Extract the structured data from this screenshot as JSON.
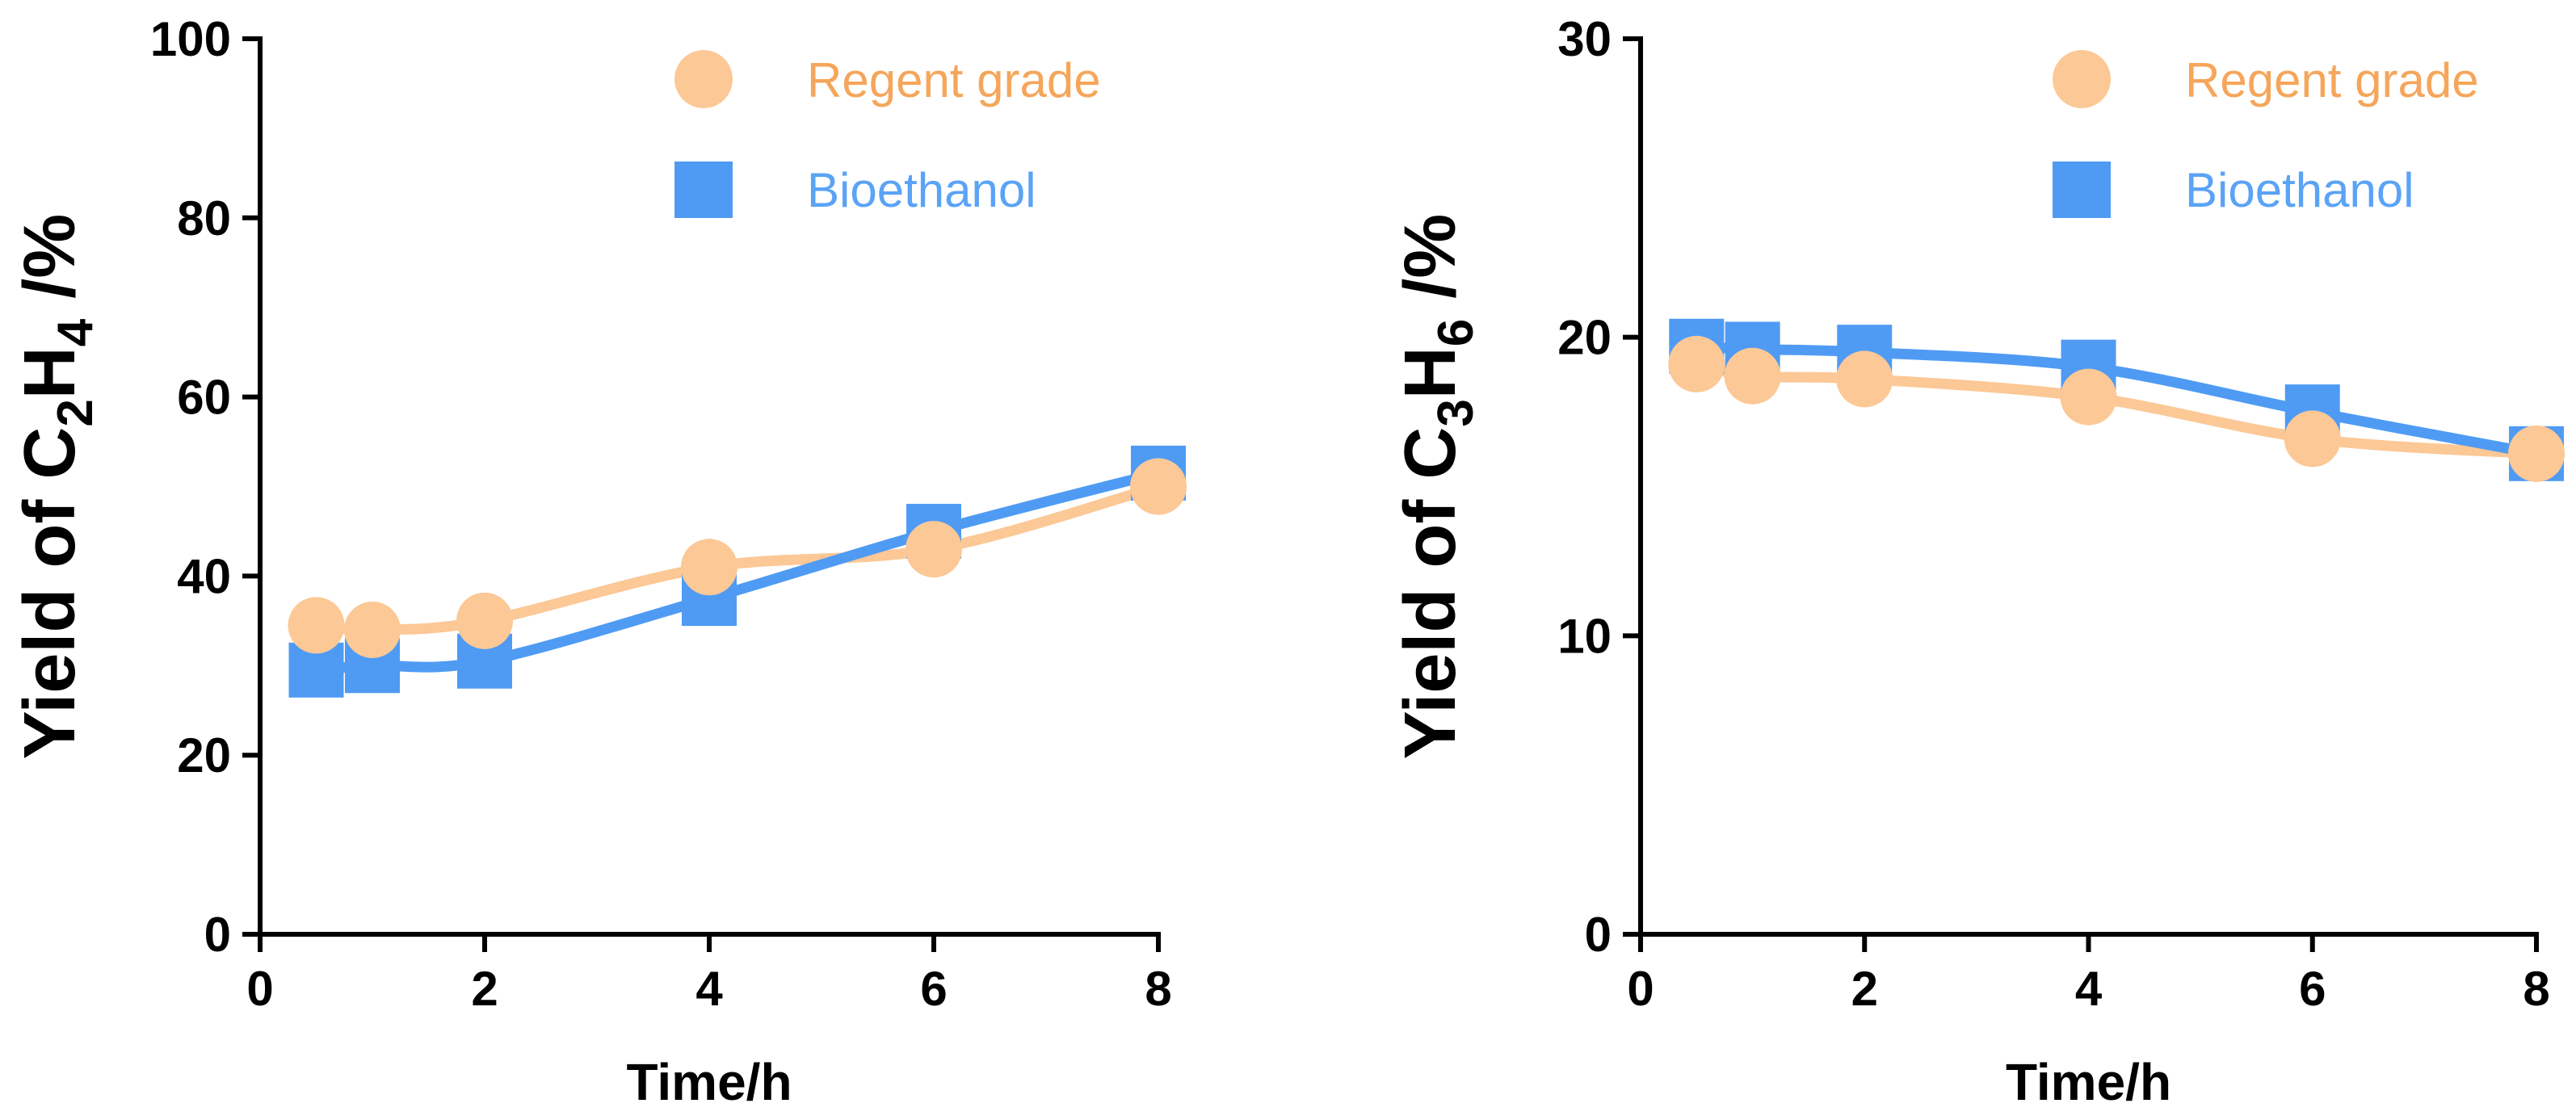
{
  "colors": {
    "regent": "#fbc896",
    "regent_text": "#f5a65b",
    "bio": "#4f9bf4",
    "bio_text": "#5aa3f6",
    "axis": "#000000"
  },
  "chart_data": [
    {
      "type": "line",
      "title": "",
      "xlabel": "Time/h",
      "ylabel": {
        "prefix": "Yield of C",
        "sub1": "2",
        "mid": "H",
        "sub2": "4",
        "suffix": " /%"
      },
      "xlim": [
        0,
        8
      ],
      "ylim": [
        0,
        100
      ],
      "xticks": [
        0,
        2,
        4,
        6,
        8
      ],
      "yticks": [
        0,
        20,
        40,
        60,
        80,
        100
      ],
      "xtick_labels": [
        "0",
        "2",
        "4",
        "6",
        "8"
      ],
      "ytick_labels": [
        "0",
        "20",
        "40",
        "60",
        "80",
        "100"
      ],
      "grid": false,
      "legend_position": "top-right",
      "series": [
        {
          "name": "Regent grade",
          "marker": "circle",
          "color_key": "regent",
          "x": [
            0.5,
            1,
            2,
            4,
            6,
            8
          ],
          "y": [
            34.5,
            34,
            35,
            41,
            43,
            50
          ]
        },
        {
          "name": "Bioethanol",
          "marker": "square",
          "color_key": "bio",
          "x": [
            0.5,
            1,
            2,
            4,
            6,
            8
          ],
          "y": [
            29.5,
            30,
            30.5,
            37.5,
            45,
            51.5
          ]
        }
      ]
    },
    {
      "type": "line",
      "title": "",
      "xlabel": "Time/h",
      "ylabel": {
        "prefix": "Yield of C",
        "sub1": "3",
        "mid": "H",
        "sub2": "6",
        "suffix": " /%"
      },
      "xlim": [
        0,
        8
      ],
      "ylim": [
        0,
        30
      ],
      "xticks": [
        0,
        2,
        4,
        6,
        8
      ],
      "yticks": [
        0,
        10,
        20,
        30
      ],
      "xtick_labels": [
        "0",
        "2",
        "4",
        "6",
        "8"
      ],
      "ytick_labels": [
        "0",
        "10",
        "20",
        "30"
      ],
      "grid": false,
      "legend_position": "top-right",
      "series": [
        {
          "name": "Regent grade",
          "marker": "circle",
          "color_key": "regent",
          "x": [
            0.5,
            1,
            2,
            4,
            6,
            8
          ],
          "y": [
            19.1,
            18.7,
            18.6,
            18.0,
            16.6,
            16.1
          ]
        },
        {
          "name": "Bioethanol",
          "marker": "square",
          "color_key": "bio",
          "x": [
            0.5,
            1,
            2,
            4,
            6,
            8
          ],
          "y": [
            19.7,
            19.6,
            19.5,
            19.0,
            17.5,
            16.1
          ]
        }
      ]
    }
  ]
}
